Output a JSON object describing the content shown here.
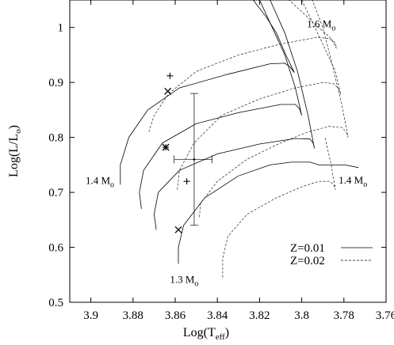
{
  "chart_data": {
    "type": "line",
    "xlabel": "Log(T",
    "xlabel_sub": "eff",
    "xlabel_close": ")",
    "ylabel": "Log(L/L",
    "ylabel_sub": "o",
    "ylabel_close": ")",
    "xlim": [
      3.91,
      3.76
    ],
    "ylim": [
      0.5,
      1.05
    ],
    "x_reversed": true,
    "x_ticks": [
      "3.9",
      "3.88",
      "3.86",
      "3.84",
      "3.82",
      "3.8",
      "3.78",
      "3.76"
    ],
    "x_tick_values": [
      3.9,
      3.88,
      3.86,
      3.84,
      3.82,
      3.8,
      3.78,
      3.76
    ],
    "y_ticks": [
      "0.5",
      "0.6",
      "0.7",
      "0.8",
      "0.9",
      "1"
    ],
    "y_tick_values": [
      0.5,
      0.6,
      0.7,
      0.8,
      0.9,
      1.0
    ],
    "grid": false,
    "legend_position": "bottom-right",
    "legend": [
      {
        "label": "Z=0.01",
        "style": "solid"
      },
      {
        "label": "Z=0.02",
        "style": "dashed"
      }
    ],
    "annotations": [
      {
        "text": "1.6 M",
        "sub": "o",
        "x": 3.7975,
        "y": 1.0
      },
      {
        "text": "1.4 M",
        "sub": "o",
        "x": 3.9025,
        "y": 0.715
      },
      {
        "text": "1.4 M",
        "sub": "o",
        "x": 3.7825,
        "y": 0.716
      },
      {
        "text": "1.3 M",
        "sub": "o",
        "x": 3.8625,
        "y": 0.535
      }
    ],
    "observation": {
      "x": 3.851,
      "y": 0.76,
      "x_err": [
        3.8605,
        3.8425
      ],
      "y_err": [
        0.64,
        0.88
      ]
    },
    "markers": [
      {
        "symbol": "plus",
        "x": 3.8625,
        "y": 0.912
      },
      {
        "symbol": "x",
        "x": 3.8635,
        "y": 0.884
      },
      {
        "symbol": "x",
        "x": 3.8645,
        "y": 0.782
      },
      {
        "symbol": "plus",
        "x": 3.8645,
        "y": 0.782
      },
      {
        "symbol": "plus",
        "x": 3.8545,
        "y": 0.72
      },
      {
        "symbol": "x",
        "x": 3.8585,
        "y": 0.632
      }
    ],
    "series": [
      {
        "style": "solid",
        "x": [
          3.886,
          3.886,
          3.882,
          3.873,
          3.858,
          3.835,
          3.815,
          3.808,
          3.8055,
          3.8035,
          3.8075,
          3.812,
          3.817,
          3.823
        ],
        "y": [
          0.714,
          0.75,
          0.8,
          0.85,
          0.89,
          0.915,
          0.934,
          0.935,
          0.928,
          0.918,
          0.95,
          0.99,
          1.02,
          1.05
        ]
      },
      {
        "style": "solid",
        "x": [
          3.876,
          3.877,
          3.875,
          3.866,
          3.85,
          3.83,
          3.81,
          3.803,
          3.801,
          3.8,
          3.803,
          3.808,
          3.814,
          3.82
        ],
        "y": [
          0.67,
          0.7,
          0.74,
          0.79,
          0.825,
          0.845,
          0.86,
          0.86,
          0.852,
          0.84,
          0.89,
          0.95,
          1.0,
          1.05
        ]
      },
      {
        "style": "solid",
        "x": [
          3.869,
          3.87,
          3.868,
          3.858,
          3.84,
          3.82,
          3.803,
          3.796,
          3.7945,
          3.794,
          3.797,
          3.802,
          3.808,
          3.815
        ],
        "y": [
          0.632,
          0.66,
          0.7,
          0.74,
          0.77,
          0.788,
          0.798,
          0.797,
          0.789,
          0.78,
          0.84,
          0.92,
          0.99,
          1.05
        ]
      },
      {
        "style": "solid",
        "x": [
          3.8585,
          3.8585,
          3.856,
          3.846,
          3.83,
          3.815,
          3.805,
          3.796,
          3.792,
          3.7795,
          3.773
        ],
        "y": [
          0.57,
          0.6,
          0.64,
          0.69,
          0.73,
          0.75,
          0.755,
          0.755,
          0.75,
          0.75,
          0.745
        ]
      },
      {
        "style": "dashed",
        "x": [
          3.8725,
          3.87,
          3.863,
          3.85,
          3.83,
          3.81,
          3.793,
          3.787,
          3.784,
          3.7835,
          3.786,
          3.792,
          3.799,
          3.806
        ],
        "y": [
          0.81,
          0.84,
          0.88,
          0.92,
          0.95,
          0.97,
          0.982,
          0.98,
          0.972,
          0.962,
          0.98,
          1.0,
          1.025,
          1.05
        ]
      },
      {
        "style": "dashed",
        "x": [
          3.859,
          3.858,
          3.851,
          3.838,
          3.82,
          3.803,
          3.79,
          3.785,
          3.7825,
          3.7815,
          3.784,
          3.79,
          3.795,
          3.8
        ],
        "y": [
          0.705,
          0.74,
          0.79,
          0.84,
          0.87,
          0.89,
          0.9,
          0.898,
          0.889,
          0.878,
          0.92,
          0.97,
          1.01,
          1.05
        ]
      },
      {
        "style": "dashed",
        "x": [
          3.8485,
          3.848,
          3.84,
          3.826,
          3.81,
          3.797,
          3.787,
          3.781,
          3.779,
          3.778,
          3.781,
          3.786,
          3.79,
          3.795
        ],
        "y": [
          0.655,
          0.68,
          0.72,
          0.76,
          0.79,
          0.81,
          0.82,
          0.818,
          0.81,
          0.8,
          0.86,
          0.94,
          1.0,
          1.05
        ]
      },
      {
        "style": "dashed",
        "x": [
          3.8375,
          3.8375,
          3.835,
          3.826,
          3.812,
          3.8,
          3.792,
          3.787,
          3.785,
          3.784,
          3.786,
          3.789
        ],
        "y": [
          0.545,
          0.58,
          0.62,
          0.66,
          0.69,
          0.71,
          0.72,
          0.72,
          0.715,
          0.705,
          0.75,
          0.8
        ]
      }
    ]
  }
}
